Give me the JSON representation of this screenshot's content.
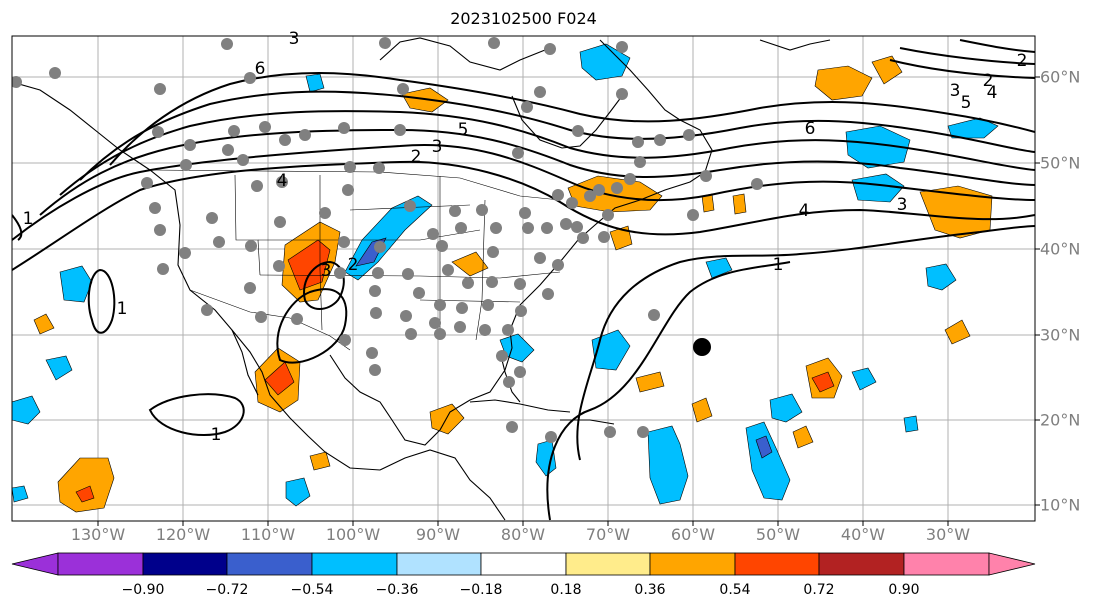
{
  "title": "2023102500 F024",
  "longitude_labels": [
    "130°W",
    "120°W",
    "110°W",
    "100°W",
    "90°W",
    "80°W",
    "70°W",
    "60°W",
    "50°W",
    "40°W",
    "30°W"
  ],
  "latitude_labels": [
    "60°N",
    "50°N",
    "40°N",
    "30°N",
    "20°N",
    "10°N"
  ],
  "contour_labels": [
    "6",
    "3",
    "4",
    "2",
    "5",
    "1",
    "3",
    "2",
    "2",
    "3",
    "4",
    "5",
    "6",
    "4",
    "3",
    "1",
    "1",
    "1",
    "2",
    "3"
  ],
  "colorbar": {
    "ticks": [
      "−0.90",
      "−0.72",
      "−0.54",
      "−0.36",
      "−0.18",
      "0.18",
      "0.36",
      "0.54",
      "0.72",
      "0.90"
    ],
    "colors": [
      "#9b30d9",
      "#00008b",
      "#3a5fcd",
      "#00bfff",
      "#b0e2ff",
      "#ffffff",
      "#ffec8b",
      "#ffa500",
      "#ff4500",
      "#b22222",
      "#ff82ab"
    ]
  },
  "colors": {
    "gridline": "#b0b0b0",
    "station_dot": "#808080",
    "contour": "#000000"
  }
}
